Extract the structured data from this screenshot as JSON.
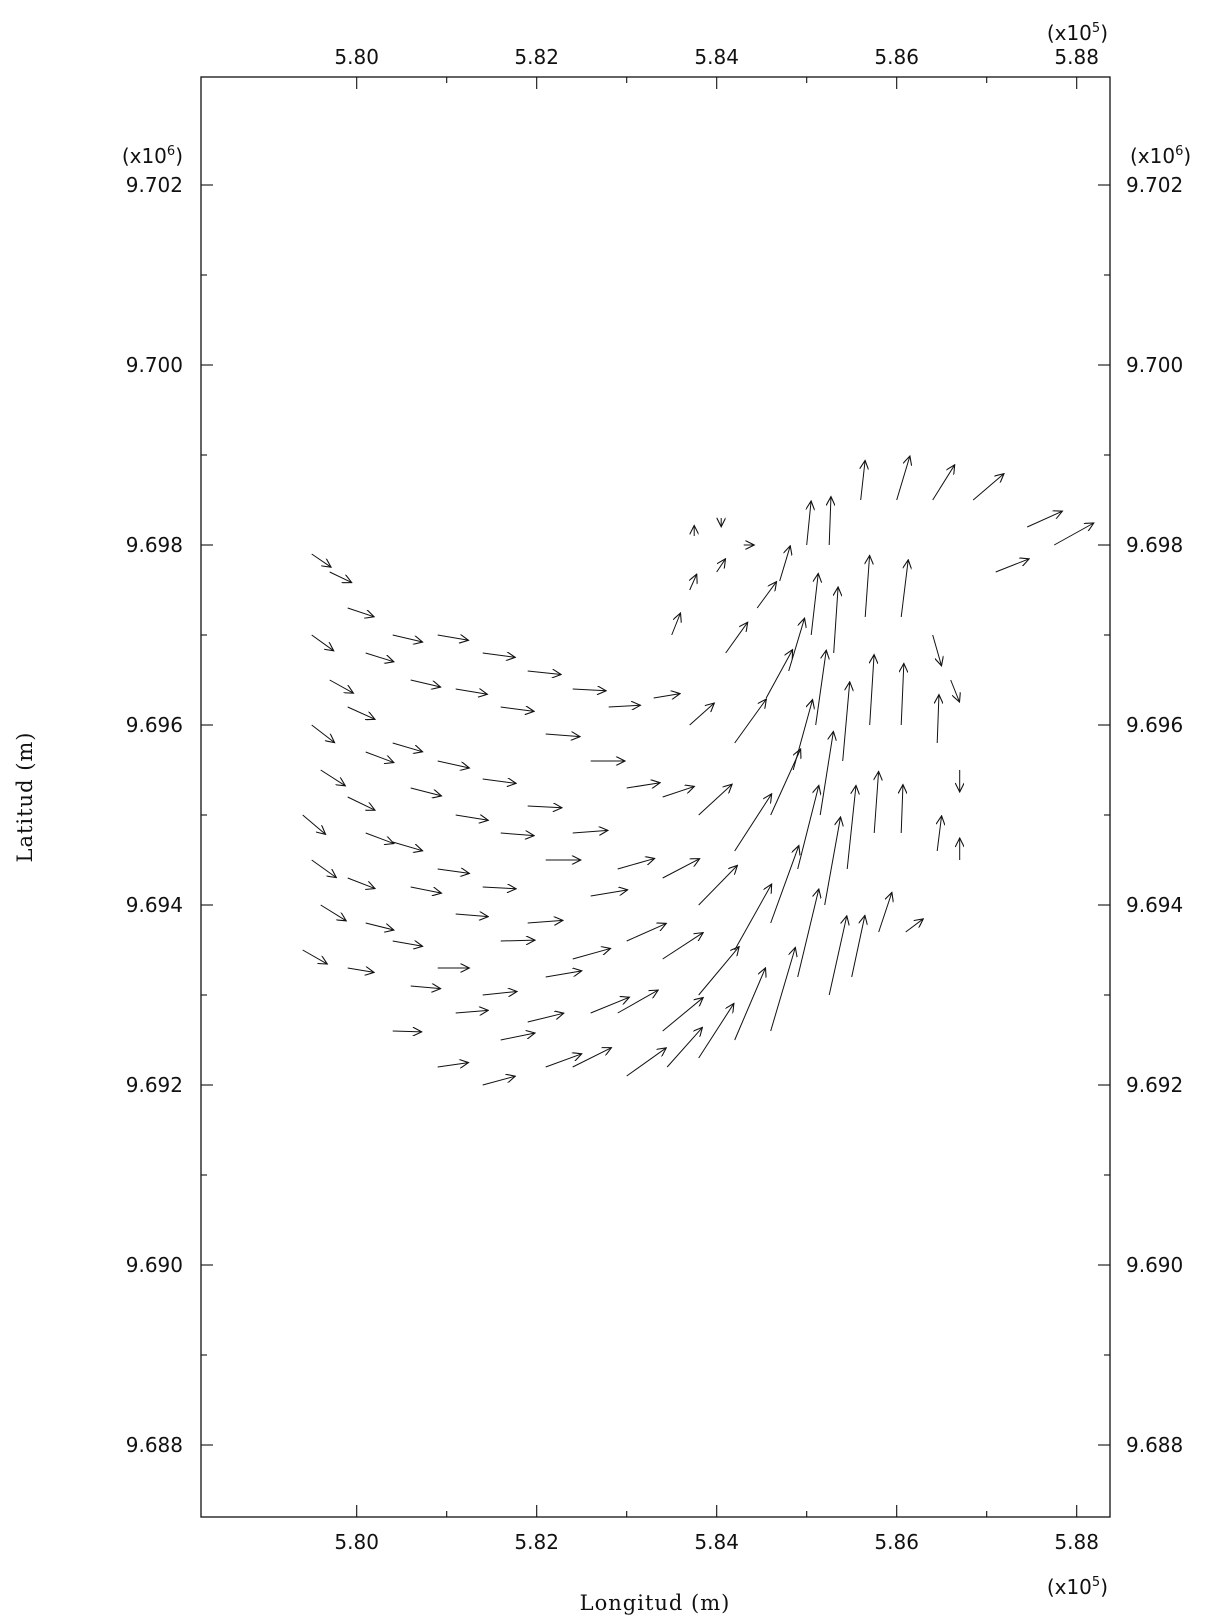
{
  "chart_data": {
    "type": "quiver",
    "title": "",
    "xlabel": "Longitud (m)",
    "ylabel": "Latitud (m)",
    "x_multiplier_label": "(x10^5)",
    "y_multiplier_label": "(x10^6)",
    "x_multiplier_base": "(x10",
    "x_multiplier_exp": "5",
    "y_multiplier_base": "(x10",
    "y_multiplier_exp": "6",
    "close_paren": ")",
    "xlim": [
      5.7827,
      5.8837
    ],
    "ylim": [
      9.6872,
      9.7032
    ],
    "x_ticks": [
      5.8,
      5.82,
      5.84,
      5.86,
      5.88
    ],
    "x_tick_labels": [
      "5.80",
      "5.82",
      "5.84",
      "5.86",
      "5.88"
    ],
    "y_ticks": [
      9.688,
      9.69,
      9.692,
      9.694,
      9.696,
      9.698,
      9.7,
      9.702
    ],
    "y_tick_labels": [
      "9.688",
      "9.690",
      "9.692",
      "9.694",
      "9.696",
      "9.698",
      "9.700",
      "9.702"
    ],
    "grid": false,
    "vectors": [
      {
        "x": 5.795,
        "y": 9.6979,
        "u": 0.22,
        "v": -0.15
      },
      {
        "x": 5.797,
        "y": 9.6977,
        "u": 0.25,
        "v": -0.12
      },
      {
        "x": 5.795,
        "y": 9.697,
        "u": 0.25,
        "v": -0.18
      },
      {
        "x": 5.797,
        "y": 9.6965,
        "u": 0.27,
        "v": -0.15
      },
      {
        "x": 5.795,
        "y": 9.696,
        "u": 0.26,
        "v": -0.2
      },
      {
        "x": 5.796,
        "y": 9.6955,
        "u": 0.28,
        "v": -0.18
      },
      {
        "x": 5.794,
        "y": 9.695,
        "u": 0.26,
        "v": -0.22
      },
      {
        "x": 5.795,
        "y": 9.6945,
        "u": 0.28,
        "v": -0.2
      },
      {
        "x": 5.796,
        "y": 9.694,
        "u": 0.29,
        "v": -0.18
      },
      {
        "x": 5.794,
        "y": 9.6935,
        "u": 0.28,
        "v": -0.16
      },
      {
        "x": 5.799,
        "y": 9.6973,
        "u": 0.3,
        "v": -0.1
      },
      {
        "x": 5.801,
        "y": 9.6968,
        "u": 0.32,
        "v": -0.1
      },
      {
        "x": 5.799,
        "y": 9.6962,
        "u": 0.31,
        "v": -0.14
      },
      {
        "x": 5.801,
        "y": 9.6957,
        "u": 0.32,
        "v": -0.12
      },
      {
        "x": 5.799,
        "y": 9.6952,
        "u": 0.31,
        "v": -0.15
      },
      {
        "x": 5.801,
        "y": 9.6948,
        "u": 0.32,
        "v": -0.12
      },
      {
        "x": 5.799,
        "y": 9.6943,
        "u": 0.31,
        "v": -0.12
      },
      {
        "x": 5.801,
        "y": 9.6938,
        "u": 0.32,
        "v": -0.08
      },
      {
        "x": 5.799,
        "y": 9.6933,
        "u": 0.3,
        "v": -0.05
      },
      {
        "x": 5.804,
        "y": 9.697,
        "u": 0.34,
        "v": -0.08
      },
      {
        "x": 5.806,
        "y": 9.6965,
        "u": 0.34,
        "v": -0.08
      },
      {
        "x": 5.804,
        "y": 9.6958,
        "u": 0.34,
        "v": -0.1
      },
      {
        "x": 5.806,
        "y": 9.6953,
        "u": 0.35,
        "v": -0.09
      },
      {
        "x": 5.804,
        "y": 9.6947,
        "u": 0.34,
        "v": -0.1
      },
      {
        "x": 5.806,
        "y": 9.6942,
        "u": 0.35,
        "v": -0.07
      },
      {
        "x": 5.804,
        "y": 9.6936,
        "u": 0.34,
        "v": -0.06
      },
      {
        "x": 5.806,
        "y": 9.6931,
        "u": 0.34,
        "v": -0.03
      },
      {
        "x": 5.804,
        "y": 9.6926,
        "u": 0.33,
        "v": -0.01
      },
      {
        "x": 5.809,
        "y": 9.697,
        "u": 0.35,
        "v": -0.06
      },
      {
        "x": 5.811,
        "y": 9.6964,
        "u": 0.36,
        "v": -0.06
      },
      {
        "x": 5.809,
        "y": 9.6956,
        "u": 0.36,
        "v": -0.08
      },
      {
        "x": 5.811,
        "y": 9.695,
        "u": 0.37,
        "v": -0.06
      },
      {
        "x": 5.809,
        "y": 9.6944,
        "u": 0.36,
        "v": -0.05
      },
      {
        "x": 5.811,
        "y": 9.6939,
        "u": 0.37,
        "v": -0.03
      },
      {
        "x": 5.809,
        "y": 9.6933,
        "u": 0.36,
        "v": 0.0
      },
      {
        "x": 5.811,
        "y": 9.6928,
        "u": 0.37,
        "v": 0.03
      },
      {
        "x": 5.809,
        "y": 9.6922,
        "u": 0.35,
        "v": 0.05
      },
      {
        "x": 5.814,
        "y": 9.6968,
        "u": 0.37,
        "v": -0.05
      },
      {
        "x": 5.816,
        "y": 9.6962,
        "u": 0.38,
        "v": -0.05
      },
      {
        "x": 5.814,
        "y": 9.6954,
        "u": 0.38,
        "v": -0.05
      },
      {
        "x": 5.816,
        "y": 9.6948,
        "u": 0.38,
        "v": -0.03
      },
      {
        "x": 5.814,
        "y": 9.6942,
        "u": 0.38,
        "v": -0.02
      },
      {
        "x": 5.816,
        "y": 9.6936,
        "u": 0.39,
        "v": 0.01
      },
      {
        "x": 5.814,
        "y": 9.693,
        "u": 0.39,
        "v": 0.04
      },
      {
        "x": 5.816,
        "y": 9.6925,
        "u": 0.39,
        "v": 0.08
      },
      {
        "x": 5.814,
        "y": 9.692,
        "u": 0.37,
        "v": 0.1
      },
      {
        "x": 5.819,
        "y": 9.6966,
        "u": 0.38,
        "v": -0.04
      },
      {
        "x": 5.821,
        "y": 9.6959,
        "u": 0.39,
        "v": -0.03
      },
      {
        "x": 5.819,
        "y": 9.6951,
        "u": 0.39,
        "v": -0.02
      },
      {
        "x": 5.821,
        "y": 9.6945,
        "u": 0.4,
        "v": 0.0
      },
      {
        "x": 5.819,
        "y": 9.6938,
        "u": 0.4,
        "v": 0.03
      },
      {
        "x": 5.821,
        "y": 9.6932,
        "u": 0.41,
        "v": 0.07
      },
      {
        "x": 5.819,
        "y": 9.6927,
        "u": 0.41,
        "v": 0.1
      },
      {
        "x": 5.821,
        "y": 9.6922,
        "u": 0.41,
        "v": 0.15
      },
      {
        "x": 5.824,
        "y": 9.6964,
        "u": 0.38,
        "v": -0.02
      },
      {
        "x": 5.826,
        "y": 9.6956,
        "u": 0.39,
        "v": 0.0
      },
      {
        "x": 5.824,
        "y": 9.6948,
        "u": 0.4,
        "v": 0.03
      },
      {
        "x": 5.826,
        "y": 9.6941,
        "u": 0.42,
        "v": 0.07
      },
      {
        "x": 5.824,
        "y": 9.6934,
        "u": 0.43,
        "v": 0.12
      },
      {
        "x": 5.826,
        "y": 9.6928,
        "u": 0.44,
        "v": 0.18
      },
      {
        "x": 5.824,
        "y": 9.6922,
        "u": 0.44,
        "v": 0.22
      },
      {
        "x": 5.828,
        "y": 9.6962,
        "u": 0.36,
        "v": 0.02
      },
      {
        "x": 5.83,
        "y": 9.6953,
        "u": 0.38,
        "v": 0.06
      },
      {
        "x": 5.829,
        "y": 9.6944,
        "u": 0.42,
        "v": 0.12
      },
      {
        "x": 5.83,
        "y": 9.6936,
        "u": 0.45,
        "v": 0.2
      },
      {
        "x": 5.829,
        "y": 9.6928,
        "u": 0.46,
        "v": 0.26
      },
      {
        "x": 5.83,
        "y": 9.6921,
        "u": 0.45,
        "v": 0.32
      },
      {
        "x": 5.833,
        "y": 9.6963,
        "u": 0.3,
        "v": 0.05
      },
      {
        "x": 5.834,
        "y": 9.6952,
        "u": 0.36,
        "v": 0.12
      },
      {
        "x": 5.834,
        "y": 9.6943,
        "u": 0.42,
        "v": 0.22
      },
      {
        "x": 5.834,
        "y": 9.6934,
        "u": 0.46,
        "v": 0.3
      },
      {
        "x": 5.834,
        "y": 9.6926,
        "u": 0.46,
        "v": 0.38
      },
      {
        "x": 5.8345,
        "y": 9.6922,
        "u": 0.4,
        "v": 0.45
      },
      {
        "x": 5.835,
        "y": 9.697,
        "u": 0.1,
        "v": 0.25
      },
      {
        "x": 5.837,
        "y": 9.696,
        "u": 0.28,
        "v": 0.25
      },
      {
        "x": 5.838,
        "y": 9.695,
        "u": 0.38,
        "v": 0.35
      },
      {
        "x": 5.838,
        "y": 9.694,
        "u": 0.44,
        "v": 0.45
      },
      {
        "x": 5.838,
        "y": 9.693,
        "u": 0.46,
        "v": 0.55
      },
      {
        "x": 5.838,
        "y": 9.6923,
        "u": 0.4,
        "v": 0.62
      },
      {
        "x": 5.837,
        "y": 9.6975,
        "u": 0.08,
        "v": 0.18
      },
      {
        "x": 5.8375,
        "y": 9.6981,
        "u": 0.0,
        "v": 0.12
      },
      {
        "x": 5.84,
        "y": 9.6977,
        "u": 0.1,
        "v": 0.15
      },
      {
        "x": 5.841,
        "y": 9.6968,
        "u": 0.25,
        "v": 0.35
      },
      {
        "x": 5.842,
        "y": 9.6958,
        "u": 0.36,
        "v": 0.5
      },
      {
        "x": 5.842,
        "y": 9.6946,
        "u": 0.42,
        "v": 0.65
      },
      {
        "x": 5.842,
        "y": 9.6935,
        "u": 0.42,
        "v": 0.75
      },
      {
        "x": 5.842,
        "y": 9.6925,
        "u": 0.35,
        "v": 0.82
      },
      {
        "x": 5.8405,
        "y": 9.6983,
        "u": 0.0,
        "v": -0.1
      },
      {
        "x": 5.843,
        "y": 9.698,
        "u": 0.12,
        "v": 0.0
      },
      {
        "x": 5.8445,
        "y": 9.6973,
        "u": 0.22,
        "v": 0.3
      },
      {
        "x": 5.8455,
        "y": 9.6963,
        "u": 0.3,
        "v": 0.55
      },
      {
        "x": 5.846,
        "y": 9.695,
        "u": 0.34,
        "v": 0.75
      },
      {
        "x": 5.846,
        "y": 9.6938,
        "u": 0.32,
        "v": 0.88
      },
      {
        "x": 5.846,
        "y": 9.6926,
        "u": 0.28,
        "v": 0.95
      },
      {
        "x": 5.847,
        "y": 9.6976,
        "u": 0.12,
        "v": 0.4
      },
      {
        "x": 5.848,
        "y": 9.6966,
        "u": 0.18,
        "v": 0.6
      },
      {
        "x": 5.8485,
        "y": 9.6955,
        "u": 0.22,
        "v": 0.8
      },
      {
        "x": 5.849,
        "y": 9.6944,
        "u": 0.24,
        "v": 0.95
      },
      {
        "x": 5.849,
        "y": 9.6932,
        "u": 0.24,
        "v": 1.0
      },
      {
        "x": 5.85,
        "y": 9.698,
        "u": 0.05,
        "v": 0.5
      },
      {
        "x": 5.8505,
        "y": 9.697,
        "u": 0.08,
        "v": 0.7
      },
      {
        "x": 5.851,
        "y": 9.696,
        "u": 0.12,
        "v": 0.85
      },
      {
        "x": 5.8515,
        "y": 9.695,
        "u": 0.15,
        "v": 0.95
      },
      {
        "x": 5.852,
        "y": 9.694,
        "u": 0.18,
        "v": 1.0
      },
      {
        "x": 5.8525,
        "y": 9.693,
        "u": 0.2,
        "v": 0.9
      },
      {
        "x": 5.8525,
        "y": 9.698,
        "u": 0.02,
        "v": 0.55
      },
      {
        "x": 5.853,
        "y": 9.6968,
        "u": 0.05,
        "v": 0.75
      },
      {
        "x": 5.854,
        "y": 9.6956,
        "u": 0.08,
        "v": 0.9
      },
      {
        "x": 5.8545,
        "y": 9.6944,
        "u": 0.1,
        "v": 0.95
      },
      {
        "x": 5.855,
        "y": 9.6932,
        "u": 0.15,
        "v": 0.7
      },
      {
        "x": 5.856,
        "y": 9.6985,
        "u": 0.05,
        "v": 0.45
      },
      {
        "x": 5.8565,
        "y": 9.6972,
        "u": 0.05,
        "v": 0.7
      },
      {
        "x": 5.857,
        "y": 9.696,
        "u": 0.05,
        "v": 0.8
      },
      {
        "x": 5.8575,
        "y": 9.6948,
        "u": 0.05,
        "v": 0.7
      },
      {
        "x": 5.858,
        "y": 9.6937,
        "u": 0.15,
        "v": 0.45
      },
      {
        "x": 5.86,
        "y": 9.6985,
        "u": 0.15,
        "v": 0.5
      },
      {
        "x": 5.8605,
        "y": 9.6972,
        "u": 0.08,
        "v": 0.65
      },
      {
        "x": 5.8605,
        "y": 9.696,
        "u": 0.03,
        "v": 0.7
      },
      {
        "x": 5.8605,
        "y": 9.6948,
        "u": 0.02,
        "v": 0.55
      },
      {
        "x": 5.861,
        "y": 9.6937,
        "u": 0.2,
        "v": 0.15
      },
      {
        "x": 5.864,
        "y": 9.6985,
        "u": 0.25,
        "v": 0.4
      },
      {
        "x": 5.864,
        "y": 9.697,
        "u": 0.1,
        "v": -0.35
      },
      {
        "x": 5.8645,
        "y": 9.6958,
        "u": 0.02,
        "v": 0.55
      },
      {
        "x": 5.8645,
        "y": 9.6946,
        "u": 0.05,
        "v": 0.4
      },
      {
        "x": 5.866,
        "y": 9.6965,
        "u": 0.1,
        "v": -0.25
      },
      {
        "x": 5.867,
        "y": 9.6955,
        "u": 0.0,
        "v": -0.25
      },
      {
        "x": 5.867,
        "y": 9.6945,
        "u": 0.0,
        "v": 0.25
      },
      {
        "x": 5.8685,
        "y": 9.6985,
        "u": 0.35,
        "v": 0.3
      },
      {
        "x": 5.871,
        "y": 9.6977,
        "u": 0.38,
        "v": 0.15
      },
      {
        "x": 5.8745,
        "y": 9.6982,
        "u": 0.4,
        "v": 0.18
      },
      {
        "x": 5.8775,
        "y": 9.698,
        "u": 0.45,
        "v": 0.25
      }
    ]
  }
}
